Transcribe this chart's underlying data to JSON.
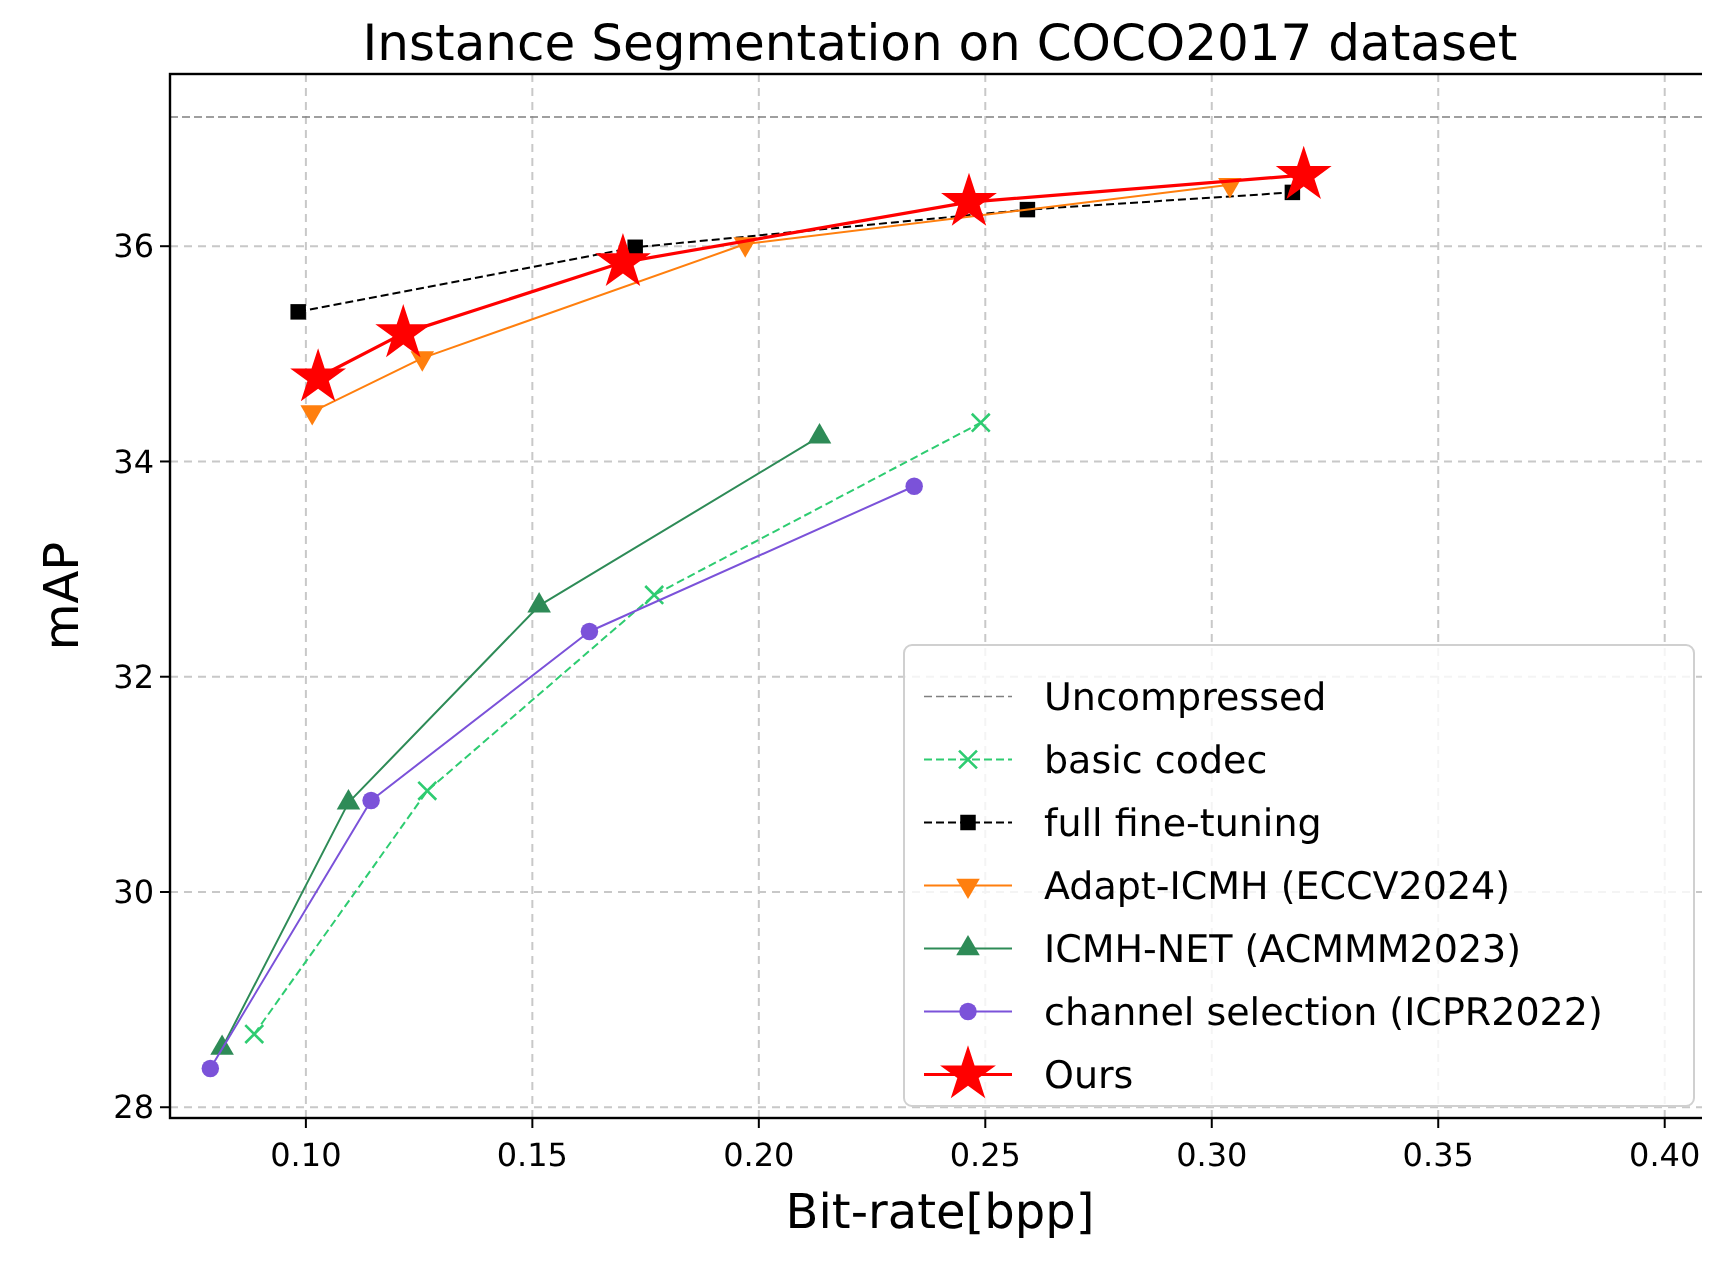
{
  "chart_data": {
    "type": "line",
    "title": "Instance Segmentation on COCO2017 dataset",
    "xlabel": "Bit-rate[bpp]",
    "ylabel": "mAP",
    "xlim": [
      0.07,
      0.41
    ],
    "xticks": [
      {
        "value": 0.1,
        "label": "0.10"
      },
      {
        "value": 0.15,
        "label": "0.15"
      },
      {
        "value": 0.2,
        "label": "0.20"
      },
      {
        "value": 0.25,
        "label": "0.25"
      },
      {
        "value": 0.3,
        "label": "0.30"
      },
      {
        "value": 0.35,
        "label": "0.35"
      },
      {
        "value": 0.4,
        "label": "0.40"
      }
    ],
    "ylim": [
      27.9,
      37.6
    ],
    "yticks": [
      28,
      30,
      32,
      34,
      36
    ],
    "grid": true,
    "legend": "bottom right",
    "ref_lines": [
      {
        "axis": "y",
        "value": 37.2,
        "label": "Uncompressed",
        "color": "#808080",
        "line_style": "dashed"
      }
    ],
    "series": [
      {
        "name": "basic codec",
        "color": "#2ecc71",
        "marker": "cross",
        "line_style": "dashed",
        "x": [
          0.0886,
          0.1268,
          0.1769,
          0.249
        ],
        "values": [
          28.68,
          30.94,
          32.76,
          34.36
        ]
      },
      {
        "name": "full fine-tuning",
        "color": "#000000",
        "marker": "square",
        "line_style": "dashed",
        "x": [
          0.0983,
          0.1727,
          0.2593,
          0.3178
        ],
        "values": [
          35.39,
          35.99,
          36.34,
          36.5
        ]
      },
      {
        "name": "Adapt-ICMH (ECCV2024)",
        "color": "#ff7f0e",
        "marker": "triangle-down",
        "line_style": "solid",
        "x": [
          0.1014,
          0.1257,
          0.197,
          0.304
        ],
        "values": [
          34.46,
          34.96,
          36.02,
          36.57
        ]
      },
      {
        "name": "ICMH-NET (ACMMM2023)",
        "color": "#2e8b57",
        "marker": "triangle",
        "line_style": "solid",
        "x": [
          0.0815,
          0.1094,
          0.1515,
          0.2134
        ],
        "values": [
          28.55,
          30.83,
          32.66,
          34.23
        ]
      },
      {
        "name": "channel selection (ICPR2022)",
        "color": "#7b52d9",
        "marker": "circle",
        "line_style": "solid",
        "x": [
          0.0789,
          0.1144,
          0.1626,
          0.2343
        ],
        "values": [
          28.36,
          30.85,
          32.42,
          33.77
        ]
      },
      {
        "name": "Ours",
        "color": "#ff0000",
        "marker": "star",
        "line_style": "solid",
        "x": [
          0.1027,
          0.1215,
          0.17,
          0.2464,
          0.3203
        ],
        "values": [
          34.78,
          35.19,
          35.85,
          36.41,
          36.66
        ]
      }
    ]
  }
}
